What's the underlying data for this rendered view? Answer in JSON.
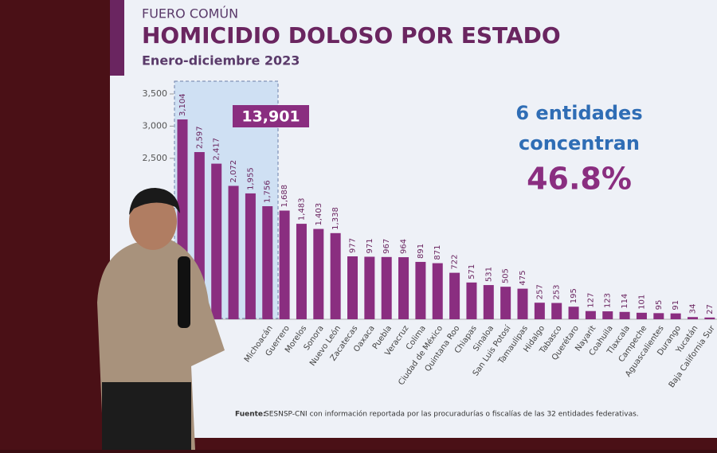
{
  "supertitle": "FUERO COMÚN",
  "chart_data": {
    "type": "bar",
    "title": "HOMICIDIO DOLOSO POR ESTADO",
    "subtitle": "Enero-diciembre 2023",
    "categories": [
      null,
      null,
      null,
      null,
      null,
      "Michoacán",
      "Guerrero",
      "Morelos",
      "Sonora",
      "Nuevo León",
      "Zacatecas",
      "Oaxaca",
      "Puebla",
      "Veracruz",
      "Colima",
      "Ciudad de México",
      "Quintana Roo",
      "Chiapas",
      "Sinaloa",
      "San Luis Potosí",
      "Tamaulipas",
      "Hidalgo",
      "Tabasco",
      "Querétaro",
      "Nayarit",
      "Coahuila",
      "Tlaxcala",
      "Campeche",
      "Aguascalientes",
      "Durango",
      "Yucatán",
      "Baja California Sur"
    ],
    "values": [
      3104,
      2597,
      2417,
      2072,
      1955,
      1756,
      1688,
      1483,
      1403,
      1338,
      977,
      971,
      967,
      964,
      891,
      871,
      722,
      571,
      531,
      505,
      475,
      257,
      253,
      195,
      127,
      123,
      114,
      101,
      95,
      91,
      34,
      27
    ],
    "value_labels": [
      "3,104",
      "2,597",
      "2,417",
      "2,072",
      "1,955",
      "1,756",
      "1,688",
      "1,483",
      "1,403",
      "1,338",
      "977",
      "971",
      "967",
      "964",
      "891",
      "871",
      "722",
      "571",
      "531",
      "505",
      "475",
      "257",
      "253",
      "195",
      "127",
      "123",
      "114",
      "101",
      "95",
      "91",
      "34",
      "27"
    ],
    "color": "#8a2e80",
    "ylim": [
      0,
      3500
    ],
    "yticks": [
      {
        "value": 2500,
        "label": "2,500"
      },
      {
        "value": 3000,
        "label": "3,000"
      },
      {
        "value": 3500,
        "label": "3,500"
      }
    ],
    "highlight_total": "13,901",
    "annotation_lines": [
      "6 entidades",
      "concentran"
    ],
    "annotation_percent": "46.8%"
  },
  "footnote": {
    "label": "Fuente:",
    "text": "SESNSP-CNI con información reportada por las procuradurías o fiscalías de las 32 entidades federativas."
  }
}
